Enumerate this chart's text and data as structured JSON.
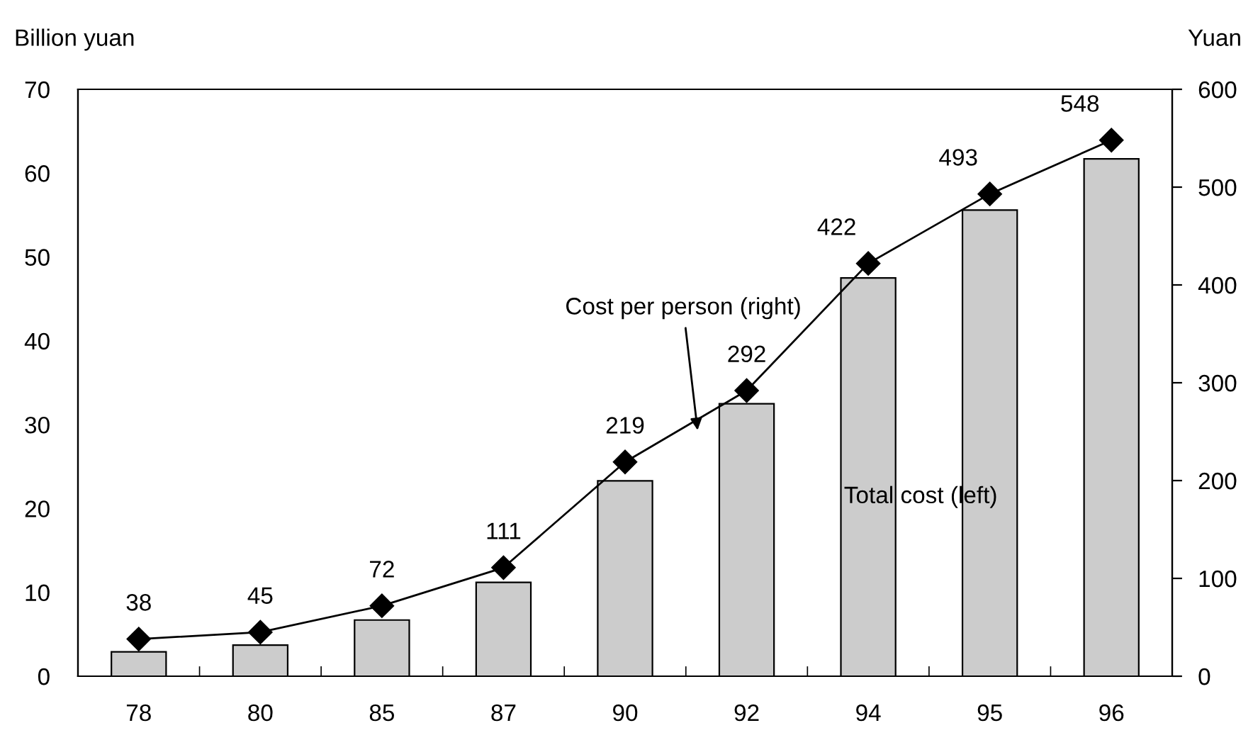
{
  "chart_data": {
    "type": "bar",
    "categories": [
      "78",
      "80",
      "85",
      "87",
      "90",
      "92",
      "94",
      "95",
      "96"
    ],
    "ylabel": "Billion yuan",
    "y2label": "Yuan",
    "ylim": [
      0,
      70
    ],
    "yticks": [
      0,
      10,
      20,
      30,
      40,
      50,
      60,
      70
    ],
    "y2lim": [
      0,
      600
    ],
    "y2ticks": [
      0,
      100,
      200,
      300,
      400,
      500,
      600
    ],
    "grid": false,
    "legend": false,
    "series": [
      {
        "name": "Total cost (left)",
        "color": "#cccccc",
        "values": [
          2.9,
          3.7,
          6.7,
          11.2,
          23.3,
          32.5,
          47.5,
          55.6,
          61.7
        ]
      },
      {
        "name": "Cost per person (right)",
        "type": "line",
        "axis": "y2",
        "color": "#000000",
        "marker": "diamond",
        "data_labels": true,
        "values": [
          38,
          45,
          72,
          111,
          219,
          292,
          422,
          493,
          548
        ]
      }
    ]
  }
}
